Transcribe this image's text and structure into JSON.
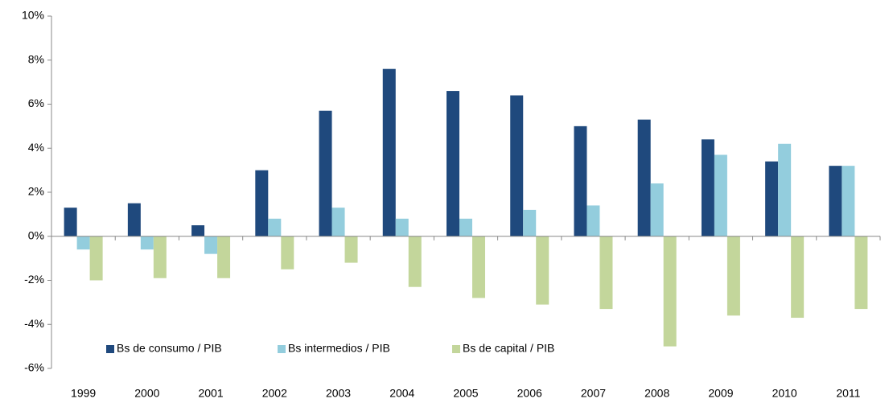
{
  "chart_data": {
    "type": "bar",
    "categories": [
      "1999",
      "2000",
      "2001",
      "2002",
      "2003",
      "2004",
      "2005",
      "2006",
      "2007",
      "2008",
      "2009",
      "2010",
      "2011"
    ],
    "series": [
      {
        "name": "Bs de consumo / PIB",
        "color": "#1f497d",
        "values": [
          1.3,
          1.5,
          0.5,
          3.0,
          5.7,
          7.6,
          6.6,
          6.4,
          5.0,
          5.3,
          4.4,
          3.4,
          3.2
        ]
      },
      {
        "name": "Bs intermedios / PIB",
        "color": "#93cddd",
        "values": [
          -0.6,
          -0.6,
          -0.8,
          0.8,
          1.3,
          0.8,
          0.8,
          1.2,
          1.4,
          2.4,
          3.7,
          4.2,
          3.2
        ]
      },
      {
        "name": "Bs de capital / PIB",
        "color": "#c3d69b",
        "values": [
          -2.0,
          -1.9,
          -1.9,
          -1.5,
          -1.2,
          -2.3,
          -2.8,
          -3.1,
          -3.3,
          -5.0,
          -3.6,
          -3.7,
          -3.3
        ]
      }
    ],
    "ylim": [
      -6,
      10
    ],
    "yticks": [
      {
        "value": -6,
        "label": "-6%"
      },
      {
        "value": -4,
        "label": "-4%"
      },
      {
        "value": -2,
        "label": "-2%"
      },
      {
        "value": 0,
        "label": "0%"
      },
      {
        "value": 2,
        "label": "2%"
      },
      {
        "value": 4,
        "label": "4%"
      },
      {
        "value": 6,
        "label": "6%"
      },
      {
        "value": 8,
        "label": "8%"
      },
      {
        "value": 10,
        "label": "10%"
      }
    ],
    "grid": false,
    "legend": "bottom-left"
  }
}
